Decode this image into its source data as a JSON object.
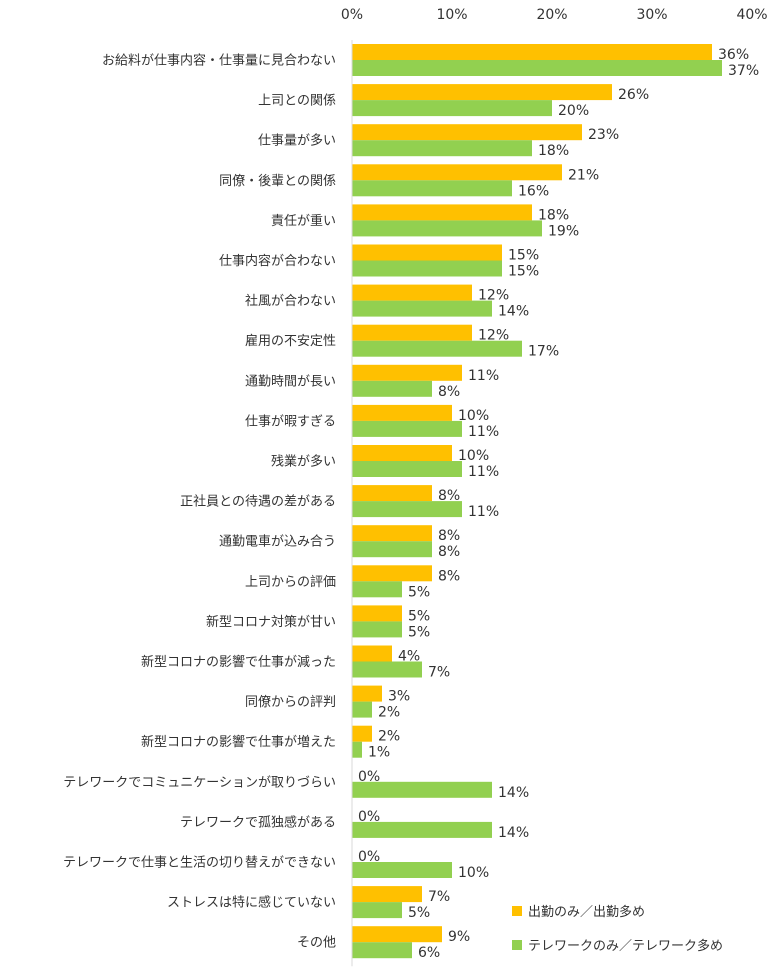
{
  "chart_data": {
    "type": "bar",
    "orientation": "horizontal",
    "xlim": [
      0,
      40
    ],
    "ticks": [
      "0%",
      "10%",
      "20%",
      "30%",
      "40%"
    ],
    "tick_values": [
      0,
      10,
      20,
      30,
      40
    ],
    "grid": false,
    "legend_position": "bottom-right",
    "categories": [
      "お給料が仕事内容・仕事量に見合わない",
      "上司との関係",
      "仕事量が多い",
      "同僚・後輩との関係",
      "責任が重い",
      "仕事内容が合わない",
      "社風が合わない",
      "雇用の不安定性",
      "通勤時間が長い",
      "仕事が暇すぎる",
      "残業が多い",
      "正社員との待遇の差がある",
      "通勤電車が込み合う",
      "上司からの評価",
      "新型コロナ対策が甘い",
      "新型コロナの影響で仕事が減った",
      "同僚からの評判",
      "新型コロナの影響で仕事が増えた",
      "テレワークでコミュニケーションが取りづらい",
      "テレワークで孤独感がある",
      "テレワークで仕事と生活の切り替えができない",
      "ストレスは特に感じていない",
      "その他"
    ],
    "series": [
      {
        "name": "出勤のみ／出勤多め",
        "color": "#FFC000",
        "values": [
          36,
          26,
          23,
          21,
          18,
          15,
          12,
          12,
          11,
          10,
          10,
          8,
          8,
          8,
          5,
          4,
          3,
          2,
          0,
          0,
          0,
          7,
          9
        ],
        "labels": [
          "36%",
          "26%",
          "23%",
          "21%",
          "18%",
          "15%",
          "12%",
          "12%",
          "11%",
          "10%",
          "10%",
          "8%",
          "8%",
          "8%",
          "5%",
          "4%",
          "3%",
          "2%",
          "0%",
          "0%",
          "0%",
          "7%",
          "9%"
        ]
      },
      {
        "name": "テレワークのみ／テレワーク多め",
        "color": "#92D050",
        "values": [
          37,
          20,
          18,
          16,
          19,
          15,
          14,
          17,
          8,
          11,
          11,
          11,
          8,
          5,
          5,
          7,
          2,
          1,
          14,
          14,
          10,
          5,
          6
        ],
        "labels": [
          "37%",
          "20%",
          "18%",
          "16%",
          "19%",
          "15%",
          "14%",
          "17%",
          "8%",
          "11%",
          "11%",
          "11%",
          "8%",
          "5%",
          "5%",
          "7%",
          "2%",
          "1%",
          "14%",
          "14%",
          "10%",
          "5%",
          "6%"
        ]
      }
    ]
  }
}
